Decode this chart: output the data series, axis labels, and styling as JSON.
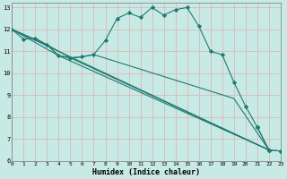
{
  "xlabel": "Humidex (Indice chaleur)",
  "xlim": [
    0,
    23
  ],
  "ylim": [
    6,
    13.2
  ],
  "yticks": [
    6,
    7,
    8,
    9,
    10,
    11,
    12,
    13
  ],
  "xticks": [
    0,
    1,
    2,
    3,
    4,
    5,
    6,
    7,
    8,
    9,
    10,
    11,
    12,
    13,
    14,
    15,
    16,
    17,
    18,
    19,
    20,
    21,
    22,
    23
  ],
  "bg_color": "#c8eae5",
  "line_color": "#1e7a70",
  "grid_color": "#b0ddd8",
  "series_main": {
    "x": [
      0,
      1,
      2,
      3,
      4,
      5,
      6,
      7,
      8,
      9,
      10,
      11,
      12,
      13,
      14,
      15,
      16,
      17,
      18,
      19,
      20,
      21,
      22,
      23
    ],
    "y": [
      12.0,
      11.55,
      11.6,
      11.3,
      10.8,
      10.7,
      10.75,
      10.85,
      11.5,
      12.5,
      12.75,
      12.55,
      13.0,
      12.65,
      12.9,
      13.0,
      12.15,
      11.0,
      10.85,
      9.6,
      8.5,
      7.55,
      6.5,
      6.45
    ]
  },
  "series_lines": [
    {
      "x": [
        0,
        22
      ],
      "y": [
        12.0,
        6.5
      ]
    },
    {
      "x": [
        0,
        4,
        22
      ],
      "y": [
        12.0,
        10.8,
        6.5
      ]
    },
    {
      "x": [
        0,
        3,
        4,
        5,
        22
      ],
      "y": [
        12.0,
        11.3,
        10.8,
        10.7,
        6.5
      ]
    },
    {
      "x": [
        0,
        3,
        5,
        6,
        7,
        19,
        22
      ],
      "y": [
        12.0,
        11.3,
        10.7,
        10.75,
        10.85,
        8.85,
        6.5
      ]
    }
  ],
  "series_zigzag": {
    "x": [
      7,
      8,
      9,
      10
    ],
    "y": [
      10.85,
      11.5,
      12.5,
      12.75
    ]
  },
  "series_triangle": {
    "x": [
      21,
      22,
      23
    ],
    "y": [
      7.55,
      6.5,
      6.45
    ]
  }
}
